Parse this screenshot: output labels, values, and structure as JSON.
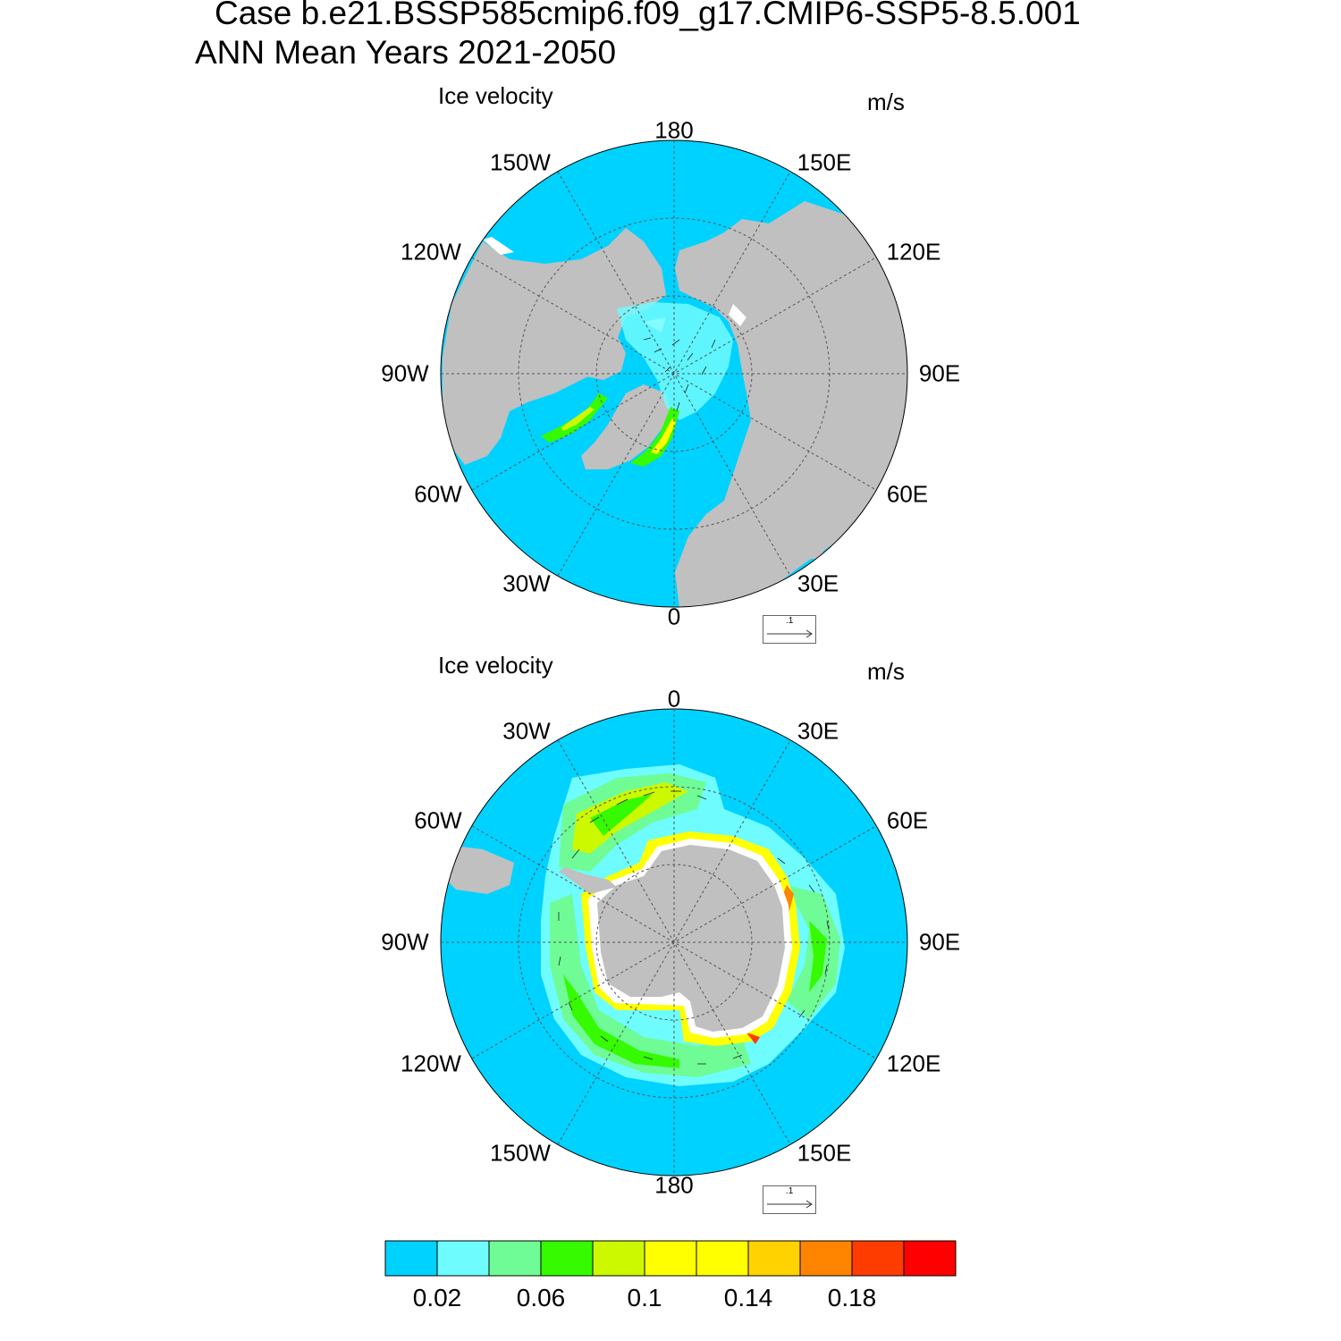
{
  "title": {
    "case": "Case b.e21.BSSP585cmip6.f09_g17.CMIP6-SSP5-8.5.001",
    "period": "ANN Mean   Years 2021-2050"
  },
  "north_panel": {
    "label": "Ice velocity",
    "units": "m/s",
    "ref_vector": ".1",
    "lon_labels": {
      "top": "180",
      "top_left": "150W",
      "top_right": "150E",
      "upper_left": "120W",
      "upper_right": "120E",
      "left": "90W",
      "right": "90E",
      "lower_left": "60W",
      "lower_right": "60E",
      "bottom_left": "30W",
      "bottom_right": "30E",
      "bottom": "0"
    }
  },
  "south_panel": {
    "label": "Ice velocity",
    "units": "m/s",
    "ref_vector": ".1",
    "lon_labels": {
      "top": "0",
      "top_left": "30W",
      "top_right": "30E",
      "upper_left": "60W",
      "upper_right": "60E",
      "left": "90W",
      "right": "90E",
      "lower_left": "120W",
      "lower_right": "120E",
      "bottom_left": "150W",
      "bottom_right": "150E",
      "bottom": "180"
    }
  },
  "colorbar": {
    "colors": [
      "#00d2ff",
      "#6efcff",
      "#6ffc96",
      "#36fa00",
      "#ccf800",
      "#ffff00",
      "#ffff00",
      "#ffd200",
      "#ff8400",
      "#ff3c00",
      "#ff0000"
    ],
    "tick_labels": [
      "0.02",
      "0.06",
      "0.1",
      "0.14",
      "0.18"
    ]
  },
  "colors": {
    "ocean": "#00d2ff",
    "land": "#c0c0c0",
    "ice_edge": "#ffffff"
  }
}
